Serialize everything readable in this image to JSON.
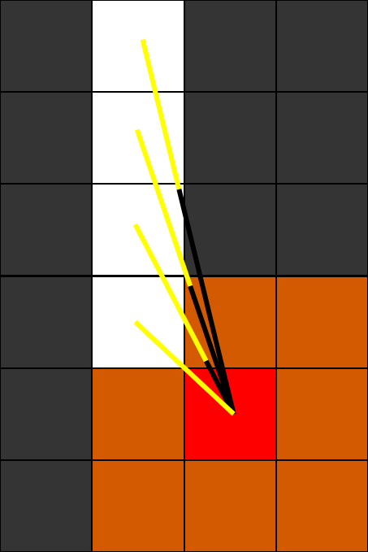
{
  "board": {
    "cols": 4,
    "rows": 6,
    "colors": {
      "wall": "#343434",
      "open": "#ffffff",
      "visible": "#d35a00",
      "player": "#ff0000",
      "ray_clear": "#ffff00",
      "ray_blocked": "#000000",
      "grid_line": "#000000"
    },
    "cells": [
      [
        "wall",
        "open",
        "wall",
        "wall"
      ],
      [
        "wall",
        "open",
        "wall",
        "wall"
      ],
      [
        "wall",
        "open",
        "wall",
        "wall"
      ],
      [
        "wall",
        "open",
        "visible",
        "visible"
      ],
      [
        "wall",
        "visible",
        "player",
        "visible"
      ],
      [
        "wall",
        "visible",
        "visible",
        "visible"
      ]
    ],
    "player": {
      "col": 2,
      "row": 4
    },
    "ray_origin": {
      "col": 2.54,
      "row": 4.5
    },
    "rays": [
      {
        "end": {
          "col": 1.55,
          "row": 0.43
        },
        "blocked_from": 0.6
      },
      {
        "end": {
          "col": 1.49,
          "row": 1.41
        },
        "blocked_from": 0.45
      },
      {
        "end": {
          "col": 1.47,
          "row": 2.44
        },
        "blocked_from": 0.28
      },
      {
        "end": {
          "col": 1.47,
          "row": 3.5
        },
        "blocked_from": 0.0
      }
    ]
  }
}
